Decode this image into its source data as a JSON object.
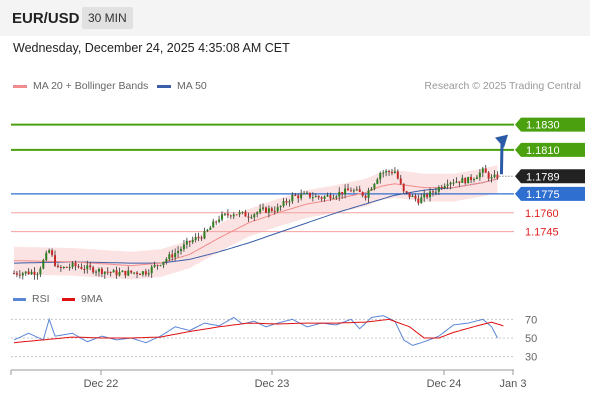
{
  "header": {
    "symbol": "EUR/USD",
    "timeframe": "30 MIN"
  },
  "datetime": "Wednesday, December 24, 2025 4:35:08 AM CET",
  "legend": [
    {
      "label": "MA 20 + Bollinger Bands",
      "color": "#f28b8b"
    },
    {
      "label": "MA 50",
      "color": "#3a5ea8"
    }
  ],
  "credit": "Research © 2025 Trading Central",
  "indicator_legend": [
    {
      "label": "RSI",
      "color": "#5b86d6"
    },
    {
      "label": "9MA",
      "color": "#e01010"
    }
  ],
  "chart_data": {
    "type": "candlestick",
    "price_range": [
      1.1705,
      1.1852
    ],
    "current_price": {
      "label": "1.1789",
      "value": 1.1789
    },
    "levels": [
      {
        "label": "1.1830",
        "value": 1.183,
        "kind": "resistance",
        "color": "#4aa00e"
      },
      {
        "label": "1.1810",
        "value": 1.181,
        "kind": "resistance",
        "color": "#4aa00e"
      },
      {
        "label": "1.1775",
        "value": 1.1775,
        "kind": "pivot",
        "color": "#2f6fd0"
      },
      {
        "label": "1.1760",
        "value": 1.176,
        "kind": "support",
        "color": "#e02020"
      },
      {
        "label": "1.1745",
        "value": 1.1745,
        "kind": "support",
        "color": "#e02020"
      }
    ],
    "forecast_target": 1.183,
    "x_labels": [
      "Dec 22",
      "Dec 23",
      "Dec 24",
      "Jan 3"
    ],
    "price_path": [
      [
        0,
        1.1712
      ],
      [
        8,
        1.1713
      ],
      [
        12,
        1.173
      ],
      [
        15,
        1.1715
      ],
      [
        20,
        1.1718
      ],
      [
        27,
        1.1715
      ],
      [
        35,
        1.1712
      ],
      [
        45,
        1.1713
      ],
      [
        55,
        1.1728
      ],
      [
        60,
        1.1737
      ],
      [
        65,
        1.1743
      ],
      [
        70,
        1.1756
      ],
      [
        75,
        1.176
      ],
      [
        80,
        1.1758
      ],
      [
        85,
        1.1762
      ],
      [
        90,
        1.1763
      ],
      [
        95,
        1.1773
      ],
      [
        100,
        1.1774
      ],
      [
        105,
        1.1772
      ],
      [
        110,
        1.1775
      ],
      [
        115,
        1.1778
      ],
      [
        120,
        1.1774
      ],
      [
        125,
        1.1792
      ],
      [
        130,
        1.1793
      ],
      [
        133,
        1.1776
      ],
      [
        138,
        1.177
      ],
      [
        142,
        1.1775
      ],
      [
        148,
        1.1785
      ],
      [
        155,
        1.1786
      ],
      [
        160,
        1.1793
      ],
      [
        163,
        1.1787
      ],
      [
        165,
        1.1789
      ]
    ],
    "ma20": [
      [
        0,
        1.1722
      ],
      [
        20,
        1.1721
      ],
      [
        40,
        1.1718
      ],
      [
        50,
        1.172
      ],
      [
        60,
        1.1727
      ],
      [
        70,
        1.174
      ],
      [
        80,
        1.1752
      ],
      [
        90,
        1.176
      ],
      [
        100,
        1.1767
      ],
      [
        110,
        1.1771
      ],
      [
        120,
        1.1776
      ],
      [
        125,
        1.1781
      ],
      [
        130,
        1.1783
      ],
      [
        140,
        1.178
      ],
      [
        150,
        1.178
      ],
      [
        160,
        1.1784
      ],
      [
        165,
        1.1787
      ]
    ],
    "ma50": [
      [
        0,
        1.172
      ],
      [
        20,
        1.1721
      ],
      [
        40,
        1.172
      ],
      [
        50,
        1.172
      ],
      [
        60,
        1.1723
      ],
      [
        70,
        1.1729
      ],
      [
        80,
        1.1736
      ],
      [
        90,
        1.1744
      ],
      [
        100,
        1.1752
      ],
      [
        110,
        1.176
      ],
      [
        120,
        1.1767
      ],
      [
        130,
        1.1774
      ],
      [
        140,
        1.1778
      ],
      [
        150,
        1.178
      ],
      [
        160,
        1.1784
      ],
      [
        165,
        1.1787
      ]
    ],
    "band_width": 0.0011,
    "rsi_range": [
      20,
      80
    ],
    "rsi_ticks": [
      70,
      50,
      30
    ],
    "rsi": [
      [
        0,
        48
      ],
      [
        5,
        55
      ],
      [
        10,
        48
      ],
      [
        12,
        70
      ],
      [
        14,
        52
      ],
      [
        20,
        55
      ],
      [
        25,
        46
      ],
      [
        30,
        52
      ],
      [
        35,
        48
      ],
      [
        40,
        50
      ],
      [
        45,
        45
      ],
      [
        50,
        52
      ],
      [
        55,
        62
      ],
      [
        60,
        58
      ],
      [
        65,
        66
      ],
      [
        70,
        63
      ],
      [
        75,
        72
      ],
      [
        78,
        65
      ],
      [
        82,
        68
      ],
      [
        86,
        62
      ],
      [
        90,
        66
      ],
      [
        95,
        70
      ],
      [
        100,
        62
      ],
      [
        105,
        66
      ],
      [
        110,
        64
      ],
      [
        115,
        70
      ],
      [
        118,
        60
      ],
      [
        122,
        72
      ],
      [
        126,
        74
      ],
      [
        130,
        68
      ],
      [
        133,
        48
      ],
      [
        136,
        42
      ],
      [
        140,
        46
      ],
      [
        145,
        52
      ],
      [
        150,
        64
      ],
      [
        155,
        66
      ],
      [
        160,
        70
      ],
      [
        163,
        62
      ],
      [
        165,
        50
      ]
    ],
    "rsi_ma": [
      [
        0,
        45
      ],
      [
        10,
        48
      ],
      [
        20,
        51
      ],
      [
        30,
        50
      ],
      [
        40,
        50
      ],
      [
        50,
        51
      ],
      [
        60,
        57
      ],
      [
        70,
        62
      ],
      [
        80,
        66
      ],
      [
        90,
        65
      ],
      [
        100,
        66
      ],
      [
        110,
        66
      ],
      [
        120,
        67
      ],
      [
        128,
        70
      ],
      [
        135,
        62
      ],
      [
        140,
        50
      ],
      [
        145,
        50
      ],
      [
        150,
        56
      ],
      [
        158,
        63
      ],
      [
        163,
        67
      ],
      [
        167,
        63
      ]
    ]
  }
}
